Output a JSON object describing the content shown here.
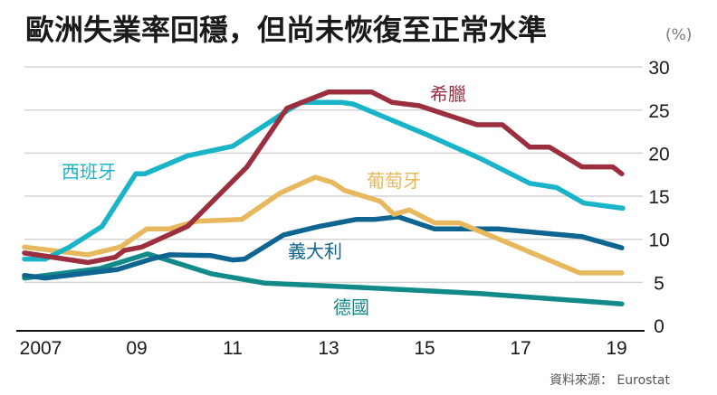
{
  "chart_data": {
    "type": "line",
    "title": "歐洲失業率回穩，但尚未恢復至正常水準",
    "unit": "(%)",
    "source": "資料來源： Eurostat",
    "xlim": [
      2006.66,
      2019.13
    ],
    "ylim": [
      0,
      30
    ],
    "grid": true,
    "y_axis_side": "right",
    "x_ticks": [
      {
        "value": 2007,
        "label": "2007"
      },
      {
        "value": 2009,
        "label": "09"
      },
      {
        "value": 2011,
        "label": "11"
      },
      {
        "value": 2013,
        "label": "13"
      },
      {
        "value": 2015,
        "label": "15"
      },
      {
        "value": 2017,
        "label": "17"
      },
      {
        "value": 2019,
        "label": "19"
      }
    ],
    "y_ticks": [
      0,
      5,
      10,
      15,
      20,
      25,
      30
    ],
    "series": [
      {
        "name": "希臘",
        "color": "#9b2f3f",
        "x": [
          2006.66,
          2007.98,
          2008.55,
          2008.74,
          2009.11,
          2010.06,
          2011.3,
          2012.13,
          2013.0,
          2013.89,
          2014.32,
          2014.89,
          2016.09,
          2016.62,
          2017.19,
          2017.6,
          2018.28,
          2018.92,
          2019.11
        ],
        "y": [
          8.4,
          7.3,
          7.9,
          8.7,
          9.1,
          11.5,
          18.4,
          25.2,
          27.1,
          27.1,
          25.9,
          25.5,
          23.3,
          23.3,
          20.7,
          20.7,
          18.4,
          18.4,
          17.6
        ]
      },
      {
        "name": "西班牙",
        "color": "#1ab4c8",
        "x": [
          2006.66,
          2007.09,
          2007.6,
          2008.28,
          2008.98,
          2009.17,
          2010.06,
          2011.0,
          2012.13,
          2012.43,
          2013.26,
          2013.51,
          2015.02,
          2016.15,
          2017.19,
          2017.75,
          2018.32,
          2019.13
        ],
        "y": [
          7.7,
          7.7,
          9.1,
          11.5,
          17.6,
          17.6,
          19.7,
          20.8,
          24.9,
          25.9,
          25.9,
          25.7,
          22.2,
          19.4,
          16.5,
          16.0,
          14.2,
          13.6
        ]
      },
      {
        "name": "葡萄牙",
        "color": "#e8b85e",
        "x": [
          2006.66,
          2007.98,
          2008.66,
          2009.21,
          2009.68,
          2010.25,
          2011.19,
          2012.0,
          2012.72,
          2013.08,
          2013.32,
          2014.08,
          2014.36,
          2014.68,
          2015.21,
          2015.72,
          2016.47,
          2018.23,
          2019.11
        ],
        "y": [
          9.1,
          8.2,
          9.1,
          11.2,
          11.2,
          12.1,
          12.3,
          15.4,
          17.2,
          16.6,
          15.7,
          14.4,
          12.9,
          13.4,
          11.9,
          11.9,
          10.2,
          6.1,
          6.1
        ]
      },
      {
        "name": "義大利",
        "color": "#0f6591",
        "x": [
          2006.66,
          2007.09,
          2008.6,
          2009.3,
          2009.68,
          2010.55,
          2011.0,
          2011.25,
          2012.06,
          2012.81,
          2013.57,
          2013.94,
          2014.45,
          2015.21,
          2015.72,
          2016.53,
          2018.28,
          2019.11
        ],
        "y": [
          5.8,
          5.5,
          6.5,
          7.7,
          8.2,
          8.1,
          7.6,
          7.7,
          10.5,
          11.5,
          12.3,
          12.3,
          12.6,
          11.2,
          11.2,
          11.2,
          10.3,
          9.0
        ]
      },
      {
        "name": "德國",
        "color": "#138a8a",
        "x": [
          2006.66,
          2008.23,
          2009.23,
          2010.55,
          2011.68,
          2013.7,
          2016.15,
          2019.11
        ],
        "y": [
          5.5,
          6.6,
          8.3,
          6.0,
          4.9,
          4.4,
          3.7,
          2.5
        ]
      }
    ]
  }
}
